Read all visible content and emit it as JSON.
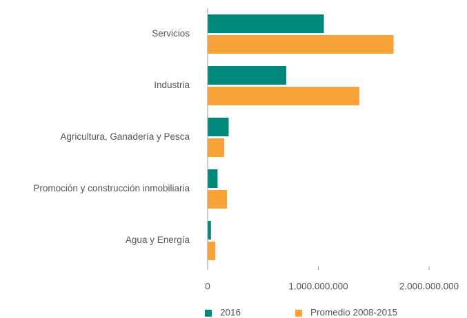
{
  "chart_data": {
    "type": "hbar",
    "categories": [
      "Servicios",
      "Industria",
      "Agricultura, Ganadería y Pesca",
      "Promoción y construcción inmobiliaria",
      "Agua y Energía"
    ],
    "series": [
      {
        "name": "2016",
        "color": "#00897a",
        "values": [
          1050000000,
          710000000,
          190000000,
          90000000,
          30000000
        ]
      },
      {
        "name": "Promedio 2008-2015",
        "color": "#f9a237",
        "values": [
          1680000000,
          1370000000,
          150000000,
          175000000,
          70000000
        ]
      }
    ],
    "xlim": [
      0,
      2000000000
    ],
    "xticks": [
      0,
      {
        "value": 1000000000,
        "label": "1.000.000.000"
      },
      {
        "value": 2000000000,
        "label": "2.000.000.000"
      }
    ],
    "legend": "bottom"
  }
}
